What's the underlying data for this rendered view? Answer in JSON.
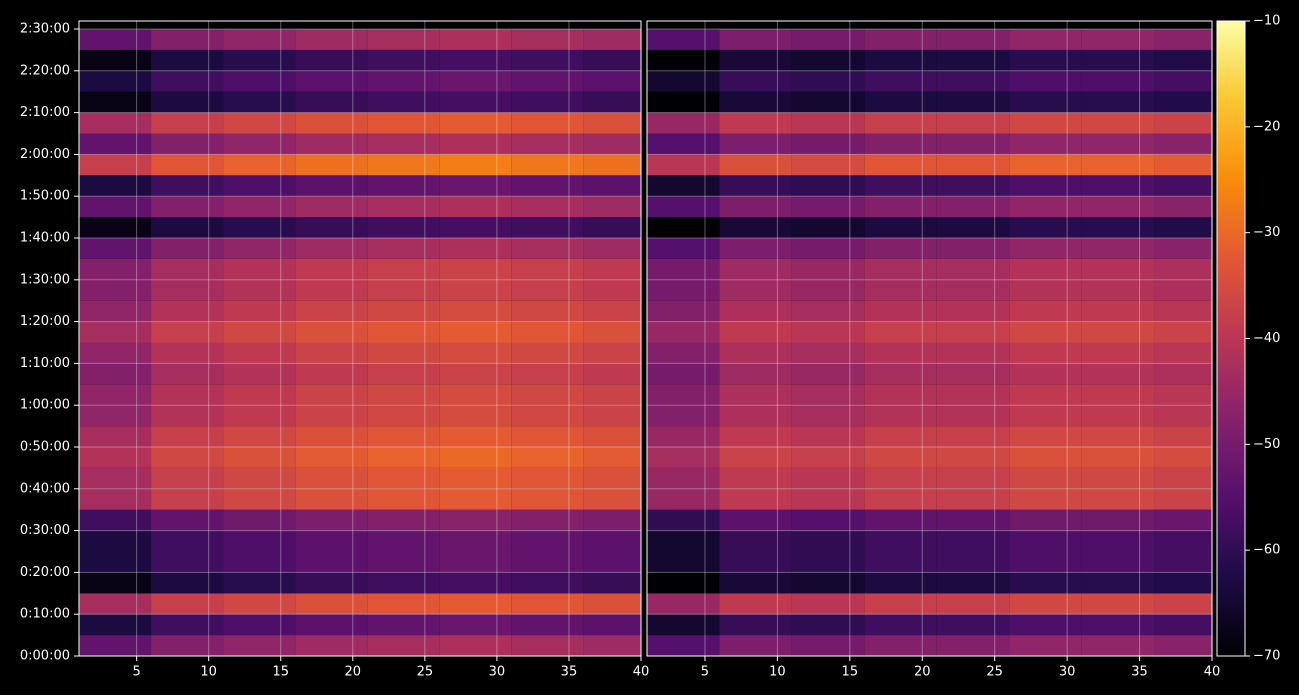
{
  "chart_data": {
    "type": "heatmap",
    "colormap": "inferno",
    "grid": true,
    "x_edges": [
      1,
      6,
      11,
      16,
      21,
      26,
      31,
      36,
      40
    ],
    "y_edges": [
      0,
      300,
      600,
      900,
      1200,
      1500,
      1800,
      2100,
      2400,
      2700,
      3000,
      3300,
      3600,
      3900,
      4200,
      4500,
      4800,
      5100,
      5400,
      5700,
      6000,
      6300,
      6600,
      6900,
      7200,
      7500,
      7800,
      8100,
      8400,
      8700,
      9000
    ],
    "xlim": [
      1,
      40
    ],
    "xticks": [
      5,
      10,
      15,
      20,
      25,
      30,
      35,
      40
    ],
    "ylim": [
      0,
      9115
    ],
    "yticks": [
      {
        "value": 0,
        "label": "0:00:00"
      },
      {
        "value": 600,
        "label": "0:10:00"
      },
      {
        "value": 1200,
        "label": "0:20:00"
      },
      {
        "value": 1800,
        "label": "0:30:00"
      },
      {
        "value": 2400,
        "label": "0:40:00"
      },
      {
        "value": 3000,
        "label": "0:50:00"
      },
      {
        "value": 3600,
        "label": "1:00:00"
      },
      {
        "value": 4200,
        "label": "1:10:00"
      },
      {
        "value": 4800,
        "label": "1:20:00"
      },
      {
        "value": 5400,
        "label": "1:30:00"
      },
      {
        "value": 6000,
        "label": "1:40:00"
      },
      {
        "value": 6600,
        "label": "1:50:00"
      },
      {
        "value": 7200,
        "label": "2:00:00"
      },
      {
        "value": 7800,
        "label": "2:10:00"
      },
      {
        "value": 8400,
        "label": "2:20:00"
      },
      {
        "value": 9000,
        "label": "2:30:00"
      }
    ],
    "clim": [
      -70,
      -10
    ],
    "cticks": [
      {
        "value": -70,
        "label": "−70"
      },
      {
        "value": -60,
        "label": "−60"
      },
      {
        "value": -50,
        "label": "−50"
      },
      {
        "value": -40,
        "label": "−40"
      },
      {
        "value": -30,
        "label": "−30"
      },
      {
        "value": -20,
        "label": "−20"
      },
      {
        "value": -10,
        "label": "−10"
      }
    ],
    "panels": [
      {
        "z": [
          [
            -53,
            -48,
            -46,
            -44,
            -43,
            -42,
            -43,
            -44
          ],
          [
            -63,
            -58,
            -56,
            -54,
            -53,
            -52,
            -53,
            -54
          ],
          [
            -43,
            -38,
            -36,
            -34,
            -33,
            -32,
            -33,
            -34
          ],
          [
            -68,
            -63,
            -61,
            -59,
            -58,
            -57,
            -58,
            -59
          ],
          [
            -63,
            -58,
            -56,
            -54,
            -53,
            -52,
            -53,
            -54
          ],
          [
            -63,
            -58,
            -56,
            -54,
            -53,
            -52,
            -53,
            -54
          ],
          [
            -58,
            -53,
            -51,
            -49,
            -48,
            -47,
            -48,
            -49
          ],
          [
            -43,
            -38,
            -36,
            -34,
            -33,
            -32,
            -33,
            -34
          ],
          [
            -43,
            -38,
            -36,
            -34,
            -33,
            -32,
            -33,
            -34
          ],
          [
            -41,
            -36,
            -34,
            -32,
            -31,
            -30,
            -31,
            -32
          ],
          [
            -43,
            -38,
            -36,
            -34,
            -33,
            -32,
            -33,
            -34
          ],
          [
            -46,
            -41,
            -39,
            -37,
            -36,
            -35,
            -36,
            -37
          ],
          [
            -46,
            -41,
            -39,
            -37,
            -36,
            -35,
            -36,
            -37
          ],
          [
            -48,
            -43,
            -41,
            -39,
            -38,
            -37,
            -38,
            -39
          ],
          [
            -46,
            -41,
            -39,
            -37,
            -36,
            -35,
            -36,
            -37
          ],
          [
            -43,
            -38,
            -36,
            -34,
            -33,
            -32,
            -33,
            -34
          ],
          [
            -46,
            -41,
            -39,
            -37,
            -36,
            -35,
            -36,
            -37
          ],
          [
            -48,
            -43,
            -41,
            -39,
            -38,
            -37,
            -38,
            -39
          ],
          [
            -48,
            -43,
            -41,
            -39,
            -38,
            -37,
            -38,
            -39
          ],
          [
            -53,
            -48,
            -46,
            -44,
            -43,
            -42,
            -43,
            -44
          ],
          [
            -68,
            -63,
            -61,
            -59,
            -58,
            -57,
            -58,
            -59
          ],
          [
            -53,
            -48,
            -46,
            -44,
            -43,
            -42,
            -43,
            -44
          ],
          [
            -63,
            -58,
            -56,
            -54,
            -53,
            -52,
            -53,
            -54
          ],
          [
            -38,
            -33,
            -31,
            -29,
            -28,
            -27,
            -28,
            -29
          ],
          [
            -53,
            -48,
            -46,
            -44,
            -43,
            -42,
            -43,
            -44
          ],
          [
            -43,
            -38,
            -36,
            -34,
            -33,
            -32,
            -33,
            -34
          ],
          [
            -68,
            -63,
            -61,
            -59,
            -58,
            -57,
            -58,
            -59
          ],
          [
            -63,
            -58,
            -56,
            -54,
            -53,
            -52,
            -53,
            -54
          ],
          [
            -68,
            -63,
            -61,
            -59,
            -58,
            -57,
            -58,
            -59
          ],
          [
            -53,
            -48,
            -46,
            -44,
            -43,
            -42,
            -43,
            -44
          ]
        ]
      },
      {
        "z": [
          [
            -55,
            -49,
            -50,
            -48,
            -48,
            -46,
            -46,
            -47
          ],
          [
            -65,
            -59,
            -60,
            -58,
            -58,
            -56,
            -56,
            -57
          ],
          [
            -45,
            -39,
            -40,
            -38,
            -38,
            -36,
            -36,
            -37
          ],
          [
            -70,
            -64,
            -65,
            -63,
            -63,
            -61,
            -61,
            -62
          ],
          [
            -65,
            -59,
            -60,
            -58,
            -58,
            -56,
            -56,
            -57
          ],
          [
            -65,
            -59,
            -60,
            -58,
            -58,
            -56,
            -56,
            -57
          ],
          [
            -60,
            -54,
            -55,
            -53,
            -53,
            -51,
            -51,
            -52
          ],
          [
            -45,
            -39,
            -40,
            -38,
            -38,
            -36,
            -36,
            -37
          ],
          [
            -45,
            -39,
            -40,
            -38,
            -38,
            -36,
            -36,
            -37
          ],
          [
            -43,
            -37,
            -38,
            -36,
            -36,
            -34,
            -34,
            -35
          ],
          [
            -45,
            -39,
            -40,
            -38,
            -38,
            -36,
            -36,
            -37
          ],
          [
            -48,
            -42,
            -43,
            -41,
            -41,
            -39,
            -39,
            -40
          ],
          [
            -48,
            -42,
            -43,
            -41,
            -41,
            -39,
            -39,
            -40
          ],
          [
            -50,
            -44,
            -45,
            -43,
            -43,
            -41,
            -41,
            -42
          ],
          [
            -48,
            -42,
            -43,
            -41,
            -41,
            -39,
            -39,
            -40
          ],
          [
            -45,
            -39,
            -40,
            -38,
            -38,
            -36,
            -36,
            -37
          ],
          [
            -48,
            -42,
            -43,
            -41,
            -41,
            -39,
            -39,
            -40
          ],
          [
            -50,
            -44,
            -45,
            -43,
            -43,
            -41,
            -41,
            -42
          ],
          [
            -50,
            -44,
            -45,
            -43,
            -43,
            -41,
            -41,
            -42
          ],
          [
            -55,
            -49,
            -50,
            -48,
            -48,
            -46,
            -46,
            -47
          ],
          [
            -70,
            -64,
            -65,
            -63,
            -63,
            -61,
            -61,
            -62
          ],
          [
            -55,
            -49,
            -50,
            -48,
            -48,
            -46,
            -46,
            -47
          ],
          [
            -65,
            -59,
            -60,
            -58,
            -58,
            -56,
            -56,
            -57
          ],
          [
            -40,
            -34,
            -35,
            -33,
            -33,
            -31,
            -31,
            -32
          ],
          [
            -55,
            -49,
            -50,
            -48,
            -48,
            -46,
            -46,
            -47
          ],
          [
            -45,
            -39,
            -40,
            -38,
            -38,
            -36,
            -36,
            -37
          ],
          [
            -70,
            -64,
            -65,
            -63,
            -63,
            -61,
            -61,
            -62
          ],
          [
            -65,
            -59,
            -60,
            -58,
            -58,
            -56,
            -56,
            -57
          ],
          [
            -70,
            -64,
            -65,
            -63,
            -63,
            -61,
            -61,
            -62
          ],
          [
            -55,
            -49,
            -50,
            -48,
            -48,
            -46,
            -46,
            -47
          ]
        ]
      }
    ]
  }
}
